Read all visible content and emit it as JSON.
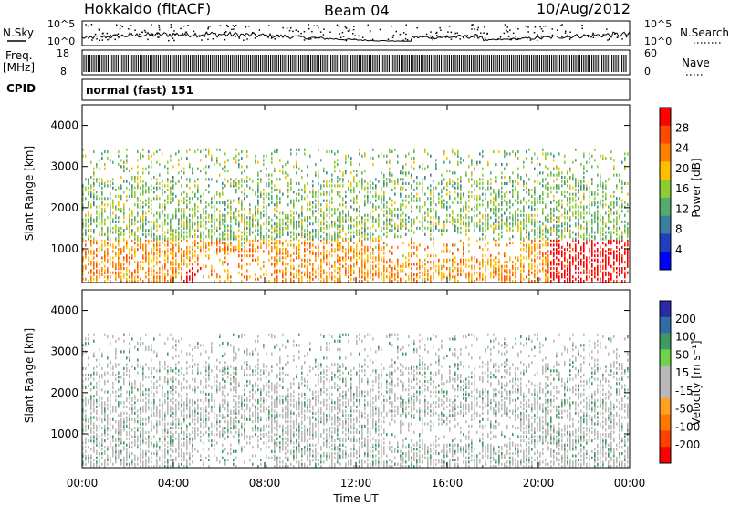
{
  "header": {
    "title": "Hokkaido (fitACF)",
    "beam": "Beam 04",
    "date": "10/Aug/2012"
  },
  "noise_panel": {
    "left_label": "N.Sky",
    "right_label": "N.Search",
    "left_ticks": [
      "10^5",
      "10^0"
    ],
    "right_ticks": [
      "10^5",
      "10^0"
    ]
  },
  "freq_panel": {
    "left_label_1": "Freq.",
    "left_label_2": "[MHz]",
    "right_label": "Nave",
    "left_ticks": [
      "18",
      "8"
    ],
    "right_ticks": [
      "60",
      "0"
    ]
  },
  "cpid_panel": {
    "label": "CPID",
    "text": "normal (fast) 151"
  },
  "colors": {
    "noise_trace": "#000000",
    "power_scale": [
      "#0000ff",
      "#1f3fbf",
      "#3a7fa0",
      "#55aa6f",
      "#8ecc33",
      "#ffbf00",
      "#ff8000",
      "#ff4a00",
      "#ff0000"
    ],
    "velocity_scale": [
      "#2a2aa8",
      "#2f6ca8",
      "#3e9a60",
      "#6ed24a",
      "#b9b9b9",
      "#b9b9b9",
      "#ffa020",
      "#ff7800",
      "#ff4000",
      "#ff0000"
    ]
  },
  "chart_data": [
    {
      "type": "heatmap",
      "quantity": "Power",
      "ylabel": "Slant Range [km]",
      "y_ticks": [
        "1000",
        "2000",
        "3000",
        "4000"
      ],
      "ylim": [
        180,
        4500
      ],
      "xlim": [
        "00:00",
        "24:00"
      ],
      "colorbar_label": "Power [dB]",
      "colorbar_ticks": [
        "4",
        "8",
        "12",
        "16",
        "20",
        "24",
        "28"
      ],
      "colorbar_range": [
        0,
        32
      ]
    },
    {
      "type": "heatmap",
      "quantity": "Velocity",
      "ylabel": "Slant Range [km]",
      "y_ticks": [
        "1000",
        "2000",
        "3000",
        "4000"
      ],
      "ylim": [
        180,
        4500
      ],
      "xlim": [
        "00:00",
        "24:00"
      ],
      "colorbar_label": "Velocity [m s⁻¹]",
      "colorbar_ticks": [
        "200",
        "100",
        "50",
        "15",
        "-15",
        "-50",
        "-100",
        "-200"
      ]
    }
  ],
  "x_axis": {
    "label": "Time UT",
    "ticks": [
      "00:00",
      "04:00",
      "08:00",
      "12:00",
      "16:00",
      "20:00",
      "00:00"
    ]
  }
}
